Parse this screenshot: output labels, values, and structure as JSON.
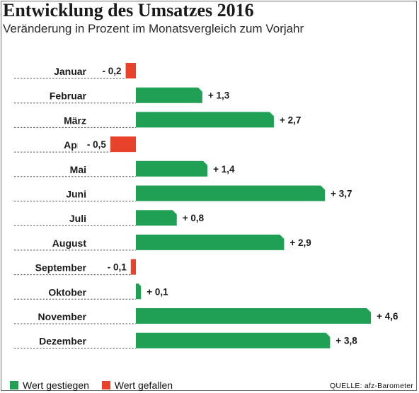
{
  "title": "Entwicklung des Umsatzes 2016",
  "subtitle": "Veränderung in Prozent im Monatsvergleich zum Vorjahr",
  "legend": {
    "up_label": "Wert gestiegen",
    "down_label": "Wert gefallen"
  },
  "source": "QUELLE: afz-Barometer",
  "colors": {
    "up": "#1fa055",
    "down": "#e8412c"
  },
  "chart_data": {
    "type": "bar",
    "orientation": "horizontal",
    "categories": [
      "Januar",
      "Februar",
      "März",
      "April",
      "Mai",
      "Juni",
      "Juli",
      "August",
      "September",
      "Oktober",
      "November",
      "Dezember"
    ],
    "values": [
      -0.2,
      1.3,
      2.7,
      -0.5,
      1.4,
      3.7,
      0.8,
      2.9,
      -0.1,
      0.1,
      4.6,
      3.8
    ],
    "value_labels": [
      "- 0,2",
      "+ 1,3",
      "+ 2,7",
      "- 0,5",
      "+ 1,4",
      "+ 3,7",
      "+ 0,8",
      "+ 2,9",
      "- 0,1",
      "+ 0,1",
      "+ 4,6",
      "+ 3,8"
    ],
    "series": [
      {
        "name": "Wert gestiegen",
        "color": "#1fa055"
      },
      {
        "name": "Wert gefallen",
        "color": "#e8412c"
      }
    ],
    "legend_position": "bottom-left",
    "grid": false
  }
}
